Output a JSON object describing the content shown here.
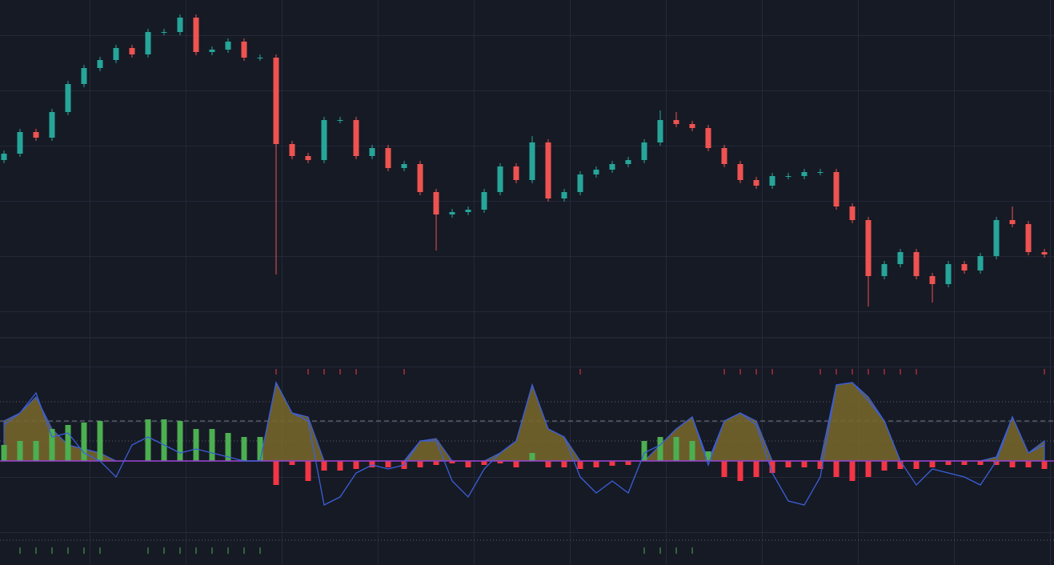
{
  "chart_data": [
    {
      "type": "candlestick",
      "open": [
        222,
        230,
        257,
        250,
        282,
        317,
        337,
        347,
        362,
        354,
        382,
        382,
        400,
        357,
        360,
        370,
        350,
        350,
        242,
        227,
        222,
        272,
        272,
        227,
        237,
        212,
        217,
        182,
        154,
        157,
        160,
        182,
        214,
        197,
        244,
        174,
        182,
        204,
        210,
        217,
        222,
        244,
        272,
        267,
        262,
        237,
        217,
        197,
        190,
        202,
        202,
        207,
        207,
        164,
        147,
        77,
        92,
        107,
        77,
        67,
        92,
        84,
        102,
        147,
        142,
        107
      ],
      "high": [
        234,
        261,
        261,
        286,
        321,
        341,
        351,
        366,
        366,
        386,
        386,
        404,
        404,
        364,
        374,
        374,
        354,
        354,
        246,
        231,
        276,
        276,
        276,
        241,
        241,
        221,
        221,
        186,
        161,
        164,
        186,
        218,
        218,
        252,
        248,
        186,
        208,
        214,
        221,
        226,
        248,
        284,
        282,
        271,
        266,
        241,
        221,
        201,
        206,
        206,
        211,
        211,
        211,
        168,
        151,
        96,
        111,
        111,
        81,
        96,
        96,
        106,
        151,
        164,
        146,
        111
      ],
      "low": [
        218,
        226,
        246,
        246,
        278,
        313,
        333,
        343,
        350,
        350,
        378,
        378,
        353,
        353,
        356,
        346,
        346,
        79,
        223,
        218,
        218,
        268,
        223,
        223,
        208,
        208,
        178,
        109,
        150,
        153,
        156,
        178,
        193,
        193,
        170,
        170,
        178,
        200,
        206,
        213,
        218,
        240,
        263,
        258,
        233,
        213,
        193,
        186,
        186,
        198,
        198,
        203,
        160,
        143,
        39,
        73,
        88,
        73,
        44,
        63,
        80,
        80,
        98,
        138,
        103,
        100
      ],
      "close": [
        230,
        257,
        250,
        282,
        317,
        337,
        347,
        362,
        354,
        382,
        382,
        400,
        357,
        360,
        370,
        350,
        350,
        242,
        227,
        222,
        272,
        272,
        227,
        237,
        212,
        217,
        182,
        154,
        157,
        160,
        182,
        214,
        197,
        244,
        174,
        182,
        204,
        210,
        217,
        222,
        244,
        272,
        267,
        262,
        237,
        217,
        197,
        190,
        202,
        202,
        207,
        207,
        164,
        147,
        77,
        92,
        107,
        77,
        67,
        92,
        84,
        102,
        147,
        142,
        107,
        104
      ],
      "up_color": "#26a69a",
      "down_color": "#ef5350",
      "ylim": [
        0,
        422
      ]
    },
    {
      "type": "oscillator",
      "histogram": [
        20,
        25,
        25,
        40,
        45,
        48,
        50,
        0,
        0,
        52,
        52,
        50,
        40,
        40,
        35,
        30,
        30,
        -30,
        -5,
        -25,
        -12,
        -12,
        -10,
        -8,
        -8,
        -10,
        -8,
        -5,
        -3,
        -8,
        -5,
        -3,
        -8,
        10,
        -8,
        -8,
        -10,
        -8,
        -6,
        -5,
        25,
        30,
        30,
        25,
        12,
        -20,
        -25,
        -20,
        -15,
        -8,
        -8,
        -10,
        -20,
        -25,
        -20,
        -12,
        -10,
        -10,
        -8,
        -5,
        -5,
        -5,
        -5,
        -8,
        -8,
        -10
      ],
      "area": [
        50,
        60,
        80,
        40,
        20,
        15,
        10,
        0,
        0,
        0,
        0,
        0,
        0,
        0,
        0,
        0,
        0,
        98,
        60,
        55,
        0,
        0,
        0,
        0,
        0,
        0,
        25,
        28,
        0,
        0,
        0,
        10,
        25,
        95,
        40,
        30,
        0,
        0,
        0,
        0,
        0,
        20,
        40,
        55,
        0,
        50,
        60,
        50,
        0,
        0,
        0,
        0,
        95,
        98,
        80,
        50,
        0,
        0,
        0,
        0,
        0,
        0,
        5,
        55,
        10,
        25
      ],
      "line": [
        45,
        60,
        85,
        30,
        35,
        10,
        0,
        -20,
        20,
        30,
        20,
        10,
        15,
        10,
        5,
        0,
        0,
        98,
        60,
        50,
        -55,
        -45,
        -15,
        -5,
        -10,
        -5,
        25,
        25,
        -25,
        -45,
        -10,
        10,
        25,
        95,
        40,
        30,
        -20,
        -40,
        -25,
        -40,
        10,
        20,
        40,
        55,
        -5,
        50,
        60,
        45,
        -15,
        -50,
        -55,
        -20,
        95,
        98,
        75,
        50,
        0,
        -30,
        -10,
        -15,
        -20,
        -30,
        0,
        55,
        10,
        20
      ],
      "ylim": [
        -130,
        146
      ],
      "dashed_levels": [
        50
      ],
      "dotted_levels": [
        74,
        25,
        -99
      ],
      "positive_color": "#4caf50",
      "negative_color": "#f23645",
      "area_color": "#7a6a2c",
      "line_color": "#3b5fd9",
      "zero_color": "#9c40c8"
    }
  ]
}
